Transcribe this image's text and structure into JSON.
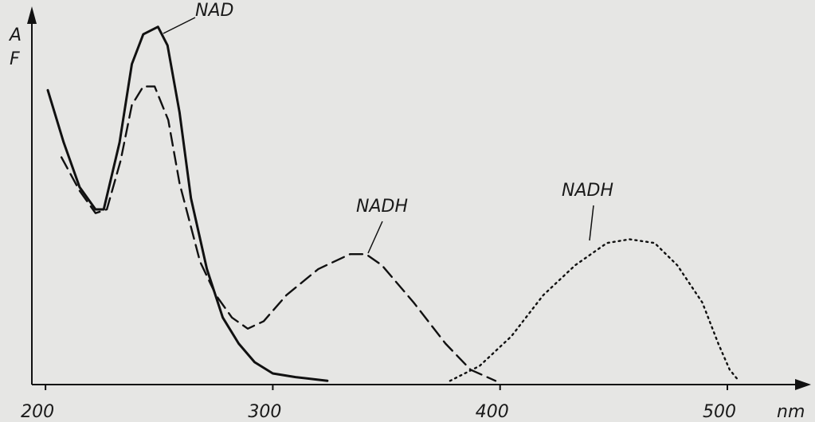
{
  "chart_data": {
    "type": "line",
    "y_labels": [
      "A",
      "F"
    ],
    "x_label": "nm",
    "annotations": [
      "NAD",
      "NADH",
      "NADH"
    ],
    "xlim": [
      194,
      534
    ],
    "xticks": [
      200,
      300,
      400,
      500
    ],
    "ylim": [
      0,
      1
    ],
    "series": [
      {
        "style": "solid",
        "color": "#111111",
        "x": [
          201,
          208,
          215,
          222,
          225.6,
          232.6,
          238,
          243,
          249.5,
          253.7,
          259,
          264,
          271,
          278,
          285,
          292,
          300,
          310,
          324
        ],
        "values": [
          0.79,
          0.65,
          0.53,
          0.47,
          0.47,
          0.65,
          0.86,
          0.94,
          0.96,
          0.91,
          0.73,
          0.5,
          0.31,
          0.18,
          0.11,
          0.06,
          0.03,
          0.02,
          0.01
        ]
      },
      {
        "style": "dashed",
        "color": "#111111",
        "x": [
          207,
          215,
          222,
          227,
          233,
          238,
          243,
          248,
          254,
          259,
          268,
          275,
          282,
          289,
          296,
          306,
          320,
          334,
          341,
          348,
          362,
          376,
          387,
          398
        ],
        "values": [
          0.61,
          0.52,
          0.46,
          0.47,
          0.6,
          0.75,
          0.8,
          0.8,
          0.71,
          0.54,
          0.33,
          0.24,
          0.18,
          0.15,
          0.17,
          0.24,
          0.31,
          0.35,
          0.35,
          0.32,
          0.22,
          0.11,
          0.04,
          0.01
        ]
      },
      {
        "style": "dotted",
        "color": "#111111",
        "x": [
          378,
          391,
          405,
          419,
          433,
          447,
          457,
          468,
          478,
          489,
          496,
          501,
          505
        ],
        "values": [
          0.01,
          0.05,
          0.13,
          0.24,
          0.32,
          0.38,
          0.39,
          0.38,
          0.32,
          0.22,
          0.11,
          0.04,
          0.01
        ]
      }
    ]
  }
}
